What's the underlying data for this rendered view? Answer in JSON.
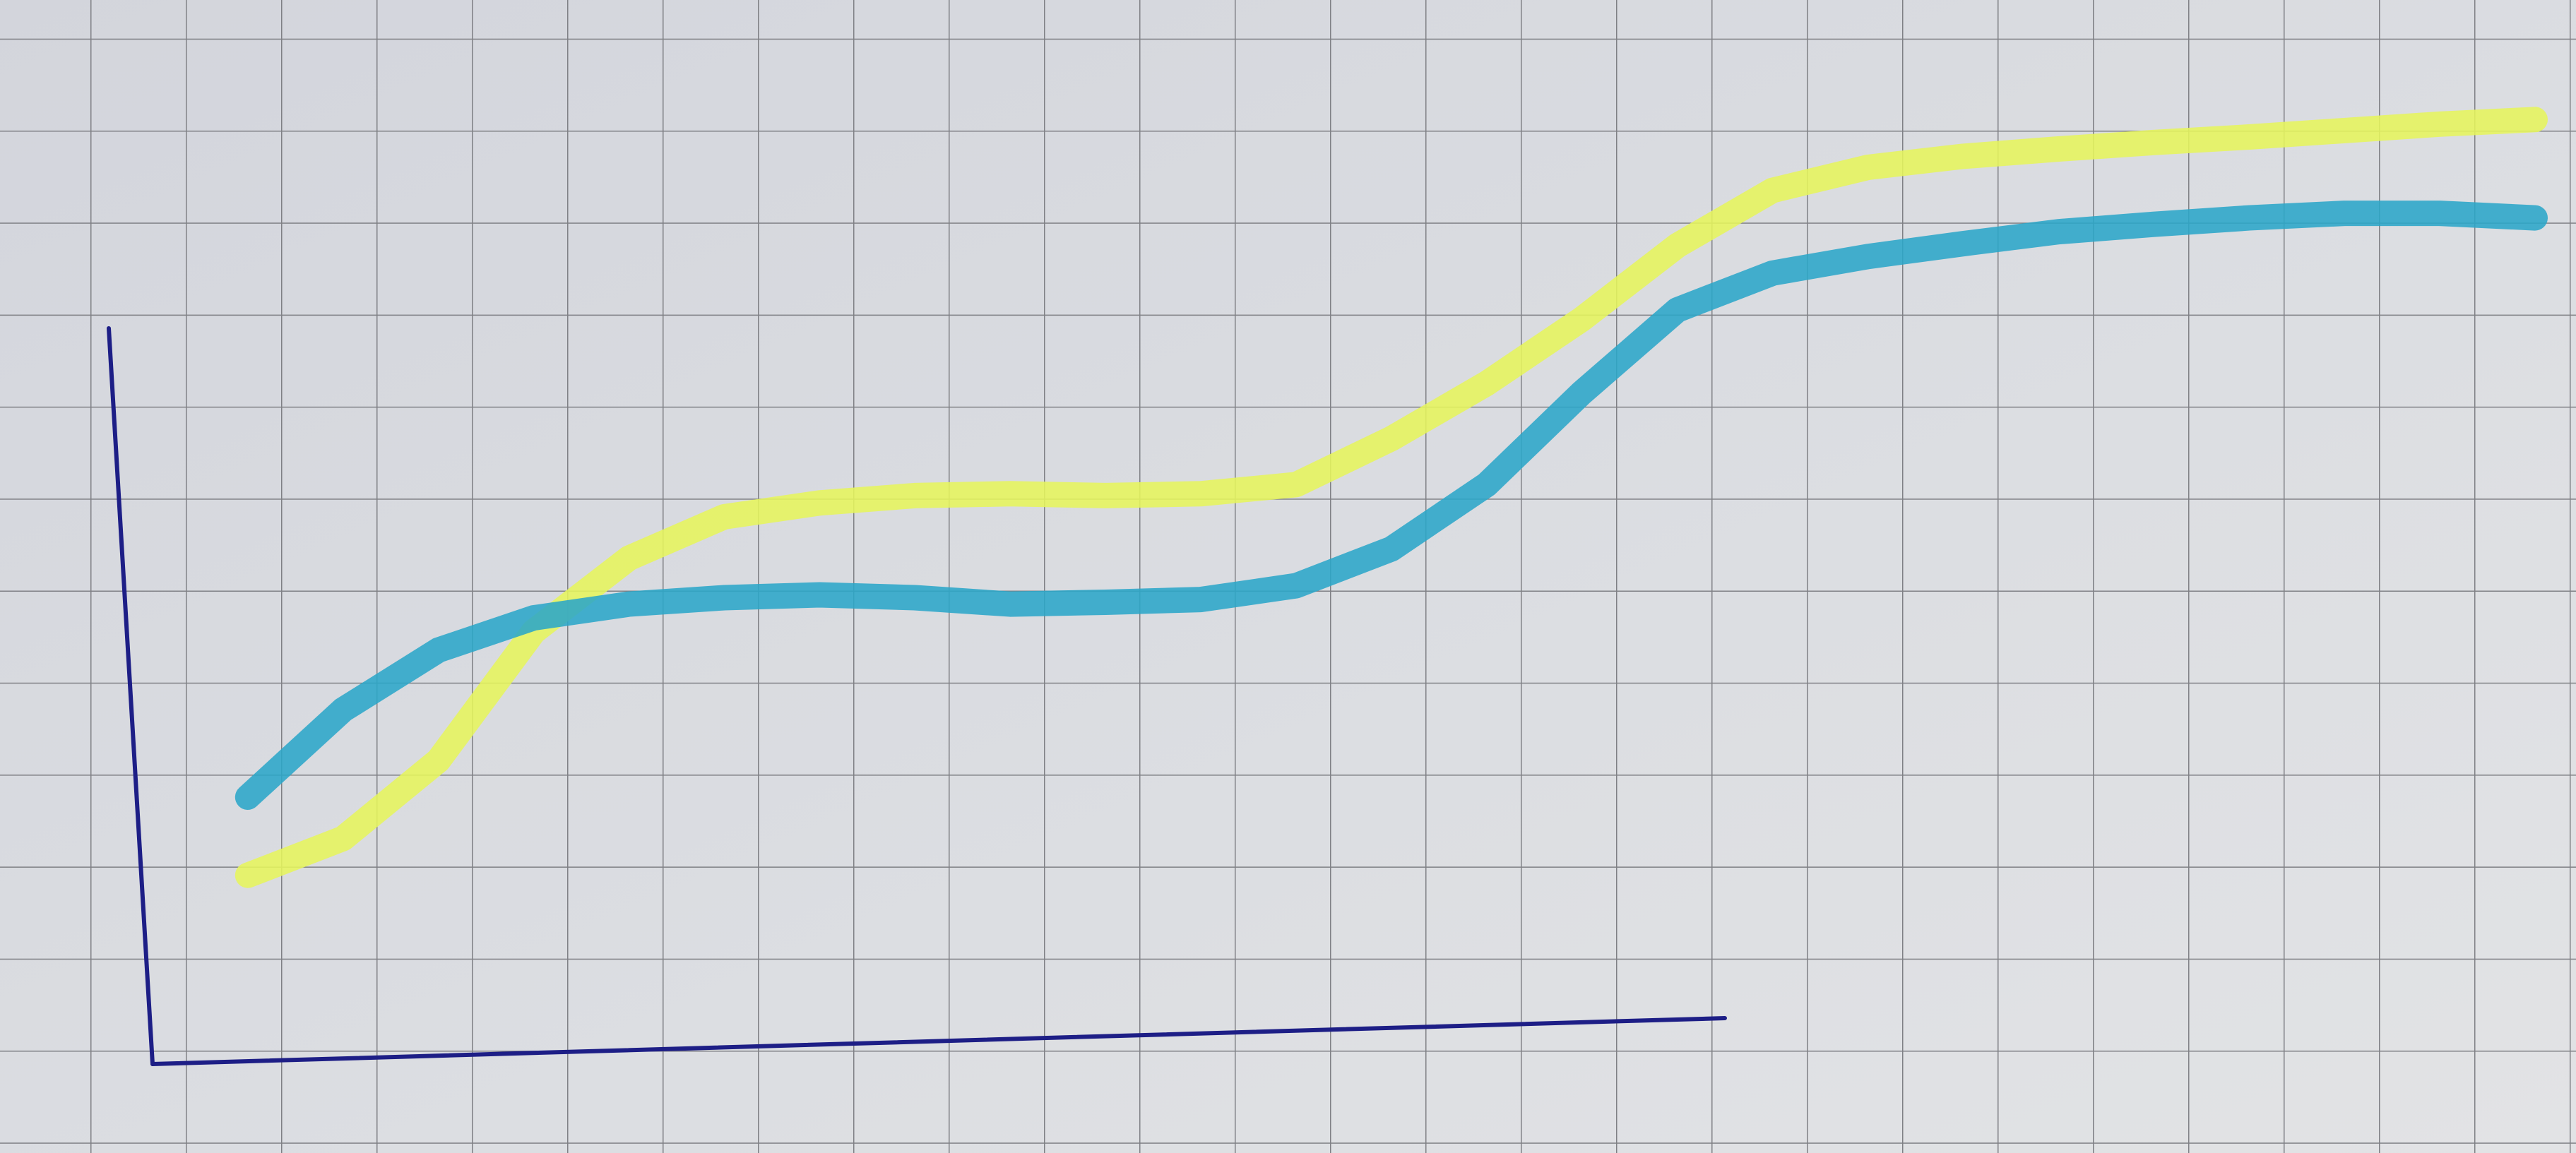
{
  "chart_data": {
    "type": "line",
    "x": [
      1,
      2,
      3,
      4,
      5,
      6,
      7,
      8,
      9,
      10,
      11,
      12,
      13,
      14,
      15,
      16,
      17,
      18,
      19,
      20,
      21,
      22,
      23,
      24,
      25
    ],
    "series": [
      {
        "color": "#e6f55c",
        "values": [
          2.05,
          2.45,
          3.3,
          4.7,
          5.5,
          5.95,
          6.1,
          6.18,
          6.2,
          6.18,
          6.2,
          6.3,
          6.8,
          7.4,
          8.1,
          8.9,
          9.5,
          9.75,
          9.87,
          9.95,
          10.02,
          10.08,
          10.15,
          10.22,
          10.27
        ]
      },
      {
        "color": "#2ba6c8",
        "values": [
          2.9,
          3.85,
          4.5,
          4.85,
          5.0,
          5.07,
          5.1,
          5.07,
          5.0,
          5.02,
          5.05,
          5.2,
          5.6,
          6.3,
          7.3,
          8.2,
          8.6,
          8.78,
          8.92,
          9.05,
          9.13,
          9.2,
          9.25,
          9.25,
          9.2
        ]
      }
    ],
    "xlim": [
      -1.6,
      25.43
    ],
    "ylim": [
      -0.97,
      11.57
    ]
  }
}
